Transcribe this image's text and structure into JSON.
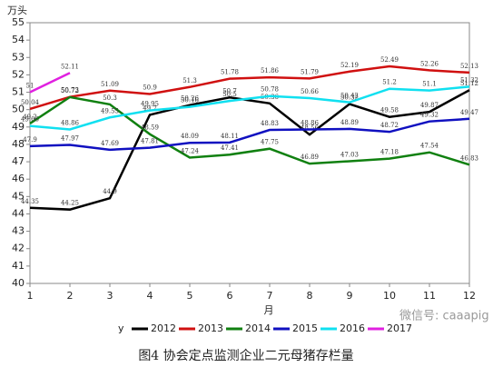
{
  "chart_data": {
    "type": "line",
    "title": "图4 协会定点监测企业二元母猪存栏量",
    "y_label": "万头",
    "x_label": "月",
    "legend_title": "y",
    "watermark": "微信号: caaapig",
    "x": [
      1,
      2,
      3,
      4,
      5,
      6,
      7,
      8,
      9,
      10,
      11,
      12
    ],
    "xlim": [
      1,
      12
    ],
    "xticks": [
      1,
      2,
      3,
      4,
      5,
      6,
      7,
      8,
      9,
      10,
      11,
      12
    ],
    "ylim": [
      40,
      55
    ],
    "yticks": [
      40,
      41,
      42,
      43,
      44,
      45,
      46,
      47,
      48,
      49,
      50,
      51,
      52,
      53,
      54,
      55
    ],
    "series": [
      {
        "name": "2012",
        "color": "#000000",
        "values": [
          44.35,
          44.25,
          44.9,
          49.7,
          50.26,
          50.7,
          50.36,
          48.56,
          50.32,
          49.58,
          49.87,
          51.12
        ]
      },
      {
        "name": "2013",
        "color": "#d01010",
        "values": [
          50.04,
          50.73,
          51.09,
          50.9,
          51.3,
          51.78,
          51.86,
          51.79,
          52.19,
          52.49,
          52.26,
          52.13
        ]
      },
      {
        "name": "2014",
        "color": "#108010",
        "values": [
          49.2,
          50.72,
          50.3,
          48.59,
          47.24,
          47.41,
          47.75,
          46.89,
          47.03,
          47.18,
          47.54,
          46.83
        ]
      },
      {
        "name": "2015",
        "color": "#1010c0",
        "values": [
          47.9,
          47.97,
          47.69,
          47.81,
          48.09,
          48.11,
          48.83,
          48.86,
          48.89,
          48.72,
          49.32,
          49.47
        ]
      },
      {
        "name": "2016",
        "color": "#10e0f0",
        "values": [
          49.06,
          48.86,
          49.55,
          49.95,
          50.16,
          50.5,
          50.78,
          50.66,
          50.42,
          51.2,
          51.1,
          51.32
        ]
      },
      {
        "name": "2017",
        "color": "#e020e0",
        "values": [
          51,
          52.11,
          null,
          null,
          null,
          null,
          null,
          null,
          null,
          null,
          null,
          null
        ]
      }
    ]
  }
}
